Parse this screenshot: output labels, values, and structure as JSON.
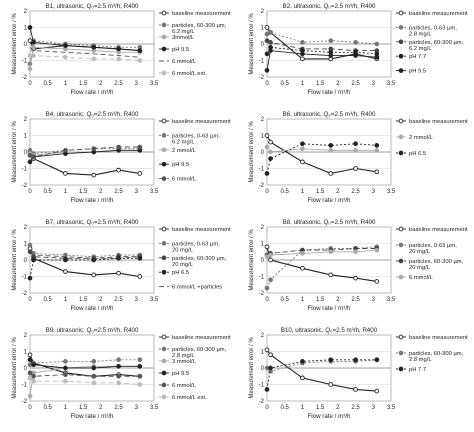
{
  "chart_data": [
    {
      "type": "line",
      "title": "B1, ultrasonic, Q₀=2.5 m³/h, R400",
      "xlabel": "Flow rate / m³/h",
      "ylabel": "Measurement error / %",
      "xlim": [
        0,
        3.5
      ],
      "ylim": [
        -2,
        2
      ],
      "xticks": [
        "0",
        "0.5",
        "1",
        "1.5",
        "2",
        "2.5",
        "3",
        "3.5"
      ],
      "yticks": [
        "2",
        "1",
        "0",
        "-1",
        "-2"
      ],
      "grid": "horizontal",
      "legend_position": "right",
      "series": [
        {
          "name": "baseline measurement",
          "color": "#222222",
          "dash": "",
          "marker": "circle-open",
          "x": [
            0,
            0.1,
            1,
            1.8,
            2.5,
            3.1
          ],
          "y": [
            0.2,
            -0.3,
            -0.1,
            -0.2,
            -0.3,
            -0.4
          ]
        },
        {
          "name": "particles, 60-300 µm, 6.2 mg/L",
          "color": "#777777",
          "dash": "2,2",
          "marker": "circle",
          "x": [
            0,
            0.1,
            1,
            1.8,
            2.5,
            3.1
          ],
          "y": [
            -1.2,
            0.2,
            0.0,
            -0.1,
            -0.2,
            -0.2
          ]
        },
        {
          "name": "3mmol/L",
          "color": "#aaaaaa",
          "dash": "",
          "marker": "circle",
          "x": [
            0,
            0.1,
            1,
            1.8,
            2.5,
            3.1
          ],
          "y": [
            -1.5,
            -0.2,
            -0.3,
            -0.4,
            -0.5,
            -0.5
          ]
        },
        {
          "name": "pH 9.5",
          "color": "#222222",
          "dash": "",
          "marker": "circle",
          "x": [
            0,
            0.1,
            1,
            1.8,
            2.5,
            3.1
          ],
          "y": [
            1.0,
            0.1,
            -0.1,
            -0.2,
            -0.3,
            -0.4
          ]
        },
        {
          "name": "6 mmol/L",
          "color": "#555555",
          "dash": "5,3",
          "marker": "none",
          "x": [
            0,
            0.1,
            1,
            1.8,
            2.5,
            3.1
          ],
          "y": [
            -0.2,
            -0.4,
            -0.5,
            -0.6,
            -0.7,
            -0.8
          ]
        },
        {
          "name": "6 mmol/L ext.",
          "color": "#bbbbbb",
          "dash": "5,3",
          "marker": "circle",
          "x": [
            0,
            0.1,
            1,
            1.8,
            2.5,
            3.1
          ],
          "y": [
            -0.7,
            -0.7,
            -0.8,
            -0.9,
            -0.9,
            -1.0
          ]
        }
      ]
    },
    {
      "type": "line",
      "title": "B2, ultrasonic, Q₀=2.5 m³/h, R400",
      "xlabel": "Flow rate / m³/h",
      "ylabel": "Measurement error / %",
      "xlim": [
        0,
        3.5
      ],
      "ylim": [
        -2,
        2
      ],
      "xticks": [
        "0",
        "0.5",
        "1",
        "1.5",
        "2",
        "2.5",
        "3",
        "3.5"
      ],
      "yticks": [
        "2",
        "1",
        "0",
        "-1",
        "-2"
      ],
      "grid": "horizontal",
      "legend_position": "right",
      "series": [
        {
          "name": "baseline measurement",
          "color": "#222222",
          "dash": "",
          "marker": "circle-open",
          "x": [
            0,
            0.1,
            1,
            1.8,
            2.5,
            3.1
          ],
          "y": [
            1.0,
            0.7,
            -0.9,
            -0.9,
            -0.6,
            -0.9
          ]
        },
        {
          "name": "particles, 0-63 µm, 2.8 mg/L",
          "color": "#777777",
          "dash": "2,2",
          "marker": "circle",
          "x": [
            0,
            0.1,
            1,
            1.8,
            2.5,
            3.1
          ],
          "y": [
            0.6,
            0.7,
            0.1,
            0.2,
            0.1,
            0.0
          ]
        },
        {
          "name": "particles, 60-300 µm, 6.2 mg/L",
          "color": "#444444",
          "dash": "5,3",
          "marker": "circle",
          "x": [
            0,
            0.1,
            1,
            1.8,
            2.5,
            3.1
          ],
          "y": [
            0.2,
            0.1,
            -0.3,
            -0.3,
            -0.4,
            -0.4
          ]
        },
        {
          "name": "pH 7.7",
          "color": "#222222",
          "dash": "2,2",
          "marker": "circle",
          "x": [
            0,
            0.1,
            1,
            1.8,
            2.5,
            3.1
          ],
          "y": [
            -0.6,
            -0.2,
            -0.4,
            -0.5,
            -0.5,
            -0.6
          ]
        },
        {
          "name": "pH 9.5",
          "color": "#222222",
          "dash": "",
          "marker": "circle",
          "x": [
            0,
            0.1,
            1,
            1.8,
            2.5,
            3.1
          ],
          "y": [
            -1.6,
            -0.4,
            -0.6,
            -0.7,
            -0.7,
            -0.8
          ]
        }
      ]
    },
    {
      "type": "line",
      "title": "B4, ultrasonic, Q₀=2.5 m³/h, R400",
      "xlabel": "Flow rate / m³/h",
      "ylabel": "Measurement error / %",
      "xlim": [
        0,
        3.5
      ],
      "ylim": [
        -2,
        2
      ],
      "xticks": [
        "0",
        "0.5",
        "1",
        "1.5",
        "2",
        "2.5",
        "3",
        "3.5"
      ],
      "yticks": [
        "2",
        "1",
        "0",
        "-1",
        "-2"
      ],
      "grid": "horizontal",
      "legend_position": "right",
      "series": [
        {
          "name": "baseline measurement",
          "color": "#222222",
          "dash": "",
          "marker": "circle-open",
          "x": [
            0,
            0.1,
            1,
            1.8,
            2.5,
            3.1
          ],
          "y": [
            0.0,
            -0.4,
            -1.3,
            -1.4,
            -1.1,
            -1.3
          ]
        },
        {
          "name": "particles, 0-63 µm, 6.2 mg/L",
          "color": "#777777",
          "dash": "2,2",
          "marker": "circle",
          "x": [
            0,
            0.1,
            1,
            1.8,
            2.5,
            3.1
          ],
          "y": [
            0.1,
            -0.1,
            0.1,
            0.2,
            0.2,
            0.2
          ]
        },
        {
          "name": "2 mmol/L",
          "color": "#aaaaaa",
          "dash": "",
          "marker": "circle",
          "x": [
            0,
            0.1,
            1,
            1.8,
            2.5,
            3.1
          ],
          "y": [
            -0.1,
            -0.2,
            0.0,
            0.0,
            0.1,
            0.1
          ]
        },
        {
          "name": "pH 9.5",
          "color": "#222222",
          "dash": "",
          "marker": "circle",
          "x": [
            0,
            0.1,
            1,
            1.8,
            2.5,
            3.1
          ],
          "y": [
            -0.6,
            -0.3,
            -0.1,
            0.0,
            0.1,
            0.1
          ]
        },
        {
          "name": "6 mmol/L",
          "color": "#555555",
          "dash": "5,3",
          "marker": "circle",
          "x": [
            0,
            0.1,
            1,
            1.8,
            2.5,
            3.1
          ],
          "y": [
            -0.2,
            -0.3,
            0.1,
            0.2,
            0.3,
            0.3
          ]
        }
      ]
    },
    {
      "type": "line",
      "title": "B6, ultrasonic, Q₀=2.5 m³/h, R400",
      "xlabel": "Flow rate / m³/h",
      "ylabel": "Measurement error / %",
      "xlim": [
        0,
        3.5
      ],
      "ylim": [
        -2,
        2
      ],
      "xticks": [
        "0",
        "0.5",
        "1",
        "1.5",
        "2",
        "2.5",
        "3",
        "3.5"
      ],
      "yticks": [
        "2",
        "1",
        "0",
        "-1",
        "-2"
      ],
      "grid": "horizontal",
      "legend_position": "right",
      "series": [
        {
          "name": "baseline measurement",
          "color": "#222222",
          "dash": "",
          "marker": "circle-open",
          "x": [
            0,
            0.1,
            1,
            1.8,
            2.5,
            3.1
          ],
          "y": [
            1.0,
            0.6,
            -0.6,
            -1.3,
            -1.0,
            -1.2
          ]
        },
        {
          "name": "2 mmol/L",
          "color": "#aaaaaa",
          "dash": "",
          "marker": "circle",
          "x": [
            0,
            0.1,
            1,
            1.8,
            2.5,
            3.1
          ],
          "y": [
            0.3,
            0.0,
            0.2,
            0.1,
            0.1,
            0.1
          ]
        },
        {
          "name": "pH 6.5",
          "color": "#222222",
          "dash": "2,2",
          "marker": "circle",
          "x": [
            0,
            0.1,
            1,
            1.8,
            2.5,
            3.1
          ],
          "y": [
            -1.3,
            -0.4,
            0.5,
            0.4,
            0.5,
            0.4
          ]
        }
      ]
    },
    {
      "type": "line",
      "title": "B7, ultrasonic, Q₀=2.5 m³/h, R400",
      "xlabel": "Flow rate / m³/h",
      "ylabel": "Measurement error / %",
      "xlim": [
        0,
        3.5
      ],
      "ylim": [
        -2,
        2
      ],
      "xticks": [
        "0",
        "0.5",
        "1",
        "1.5",
        "2",
        "2.5",
        "3",
        "3.5"
      ],
      "yticks": [
        "2",
        "1",
        "0",
        "-1",
        "-2"
      ],
      "grid": "horizontal",
      "legend_position": "right",
      "series": [
        {
          "name": "baseline measurement",
          "color": "#222222",
          "dash": "",
          "marker": "circle-open",
          "x": [
            0,
            0.1,
            1,
            1.8,
            2.5,
            3.1
          ],
          "y": [
            0.7,
            0.1,
            -0.7,
            -0.9,
            -0.8,
            -1.0
          ]
        },
        {
          "name": "particles, 0-63 µm, 20 mg/L",
          "color": "#777777",
          "dash": "2,2",
          "marker": "circle",
          "x": [
            0,
            0.1,
            1,
            1.8,
            2.5,
            3.1
          ],
          "y": [
            0.9,
            0.4,
            0.3,
            0.2,
            0.3,
            0.3
          ]
        },
        {
          "name": "particles, 60-300 µm, 20 mg/L",
          "color": "#444444",
          "dash": "5,3",
          "marker": "circle",
          "x": [
            0,
            0.1,
            1,
            1.8,
            2.5,
            3.1
          ],
          "y": [
            0.5,
            0.2,
            0.1,
            0.1,
            0.2,
            0.2
          ]
        },
        {
          "name": "pH 6.5",
          "color": "#222222",
          "dash": "2,2",
          "marker": "circle",
          "x": [
            0,
            0.1,
            1,
            1.8,
            2.5,
            3.1
          ],
          "y": [
            -1.1,
            0.0,
            0.0,
            0.0,
            0.1,
            0.1
          ]
        },
        {
          "name": "6 mmol/L +particles",
          "color": "#555555",
          "dash": "5,3",
          "marker": "none",
          "x": [
            0,
            0.1,
            1,
            1.8,
            2.5,
            3.1
          ],
          "y": [
            0.4,
            0.3,
            0.2,
            0.1,
            0.1,
            0.2
          ]
        }
      ]
    },
    {
      "type": "line",
      "title": "B8, ultrasonic, Q₀=2.5 m³/h, R400",
      "xlabel": "Flow rate / m³/h",
      "ylabel": "Measurement error / %",
      "xlim": [
        0,
        3.5
      ],
      "ylim": [
        -2,
        2
      ],
      "xticks": [
        "0",
        "0.5",
        "1",
        "1.5",
        "2",
        "2.5",
        "3",
        "3.5"
      ],
      "yticks": [
        "2",
        "1",
        "0",
        "-1",
        "-2"
      ],
      "grid": "horizontal",
      "legend_position": "right",
      "series": [
        {
          "name": "baseline measurement",
          "color": "#222222",
          "dash": "",
          "marker": "circle-open",
          "x": [
            0,
            0.1,
            1,
            1.8,
            2.5,
            3.1
          ],
          "y": [
            0.8,
            0.0,
            -0.5,
            -0.9,
            -1.1,
            -1.3
          ]
        },
        {
          "name": "particles, 0-63 µm, 20 mg/L",
          "color": "#777777",
          "dash": "2,2",
          "marker": "circle",
          "x": [
            0,
            0.1,
            1,
            1.8,
            2.5,
            3.1
          ],
          "y": [
            -1.7,
            -1.2,
            0.6,
            0.7,
            0.7,
            0.8
          ]
        },
        {
          "name": "particles, 60-300 µm, 20 mg/L",
          "color": "#444444",
          "dash": "5,3",
          "marker": "circle",
          "x": [
            0,
            0.1,
            1,
            1.8,
            2.5,
            3.1
          ],
          "y": [
            0.3,
            0.4,
            0.6,
            0.6,
            0.7,
            0.7
          ]
        },
        {
          "name": "6 mmol/L",
          "color": "#aaaaaa",
          "dash": "",
          "marker": "circle",
          "x": [
            0,
            0.1,
            1,
            1.8,
            2.5,
            3.1
          ],
          "y": [
            0.2,
            0.3,
            0.4,
            0.5,
            0.5,
            0.6
          ]
        }
      ]
    },
    {
      "type": "line",
      "title": "B9, ultrasonic, Q₀=2.5 m³/h, R400",
      "xlabel": "Flow rate / m³/h",
      "ylabel": "Measurement error / %",
      "xlim": [
        0,
        3.5
      ],
      "ylim": [
        -2,
        2
      ],
      "xticks": [
        "0",
        "0.5",
        "1",
        "1.5",
        "2",
        "2.5",
        "3",
        "3.5"
      ],
      "yticks": [
        "2",
        "1",
        "0",
        "-1",
        "-2"
      ],
      "grid": "horizontal",
      "legend_position": "right",
      "series": [
        {
          "name": "baseline measurement",
          "color": "#222222",
          "dash": "",
          "marker": "circle-open",
          "x": [
            0,
            0.1,
            1,
            1.8,
            2.5,
            3.1
          ],
          "y": [
            0.8,
            0.3,
            -0.3,
            -0.5,
            -0.4,
            -0.5
          ]
        },
        {
          "name": "particles, 60-300 µm, 2.8 mg/L",
          "color": "#777777",
          "dash": "2,2",
          "marker": "circle",
          "x": [
            0,
            0.1,
            1,
            1.8,
            2.5,
            3.1
          ],
          "y": [
            0.2,
            0.3,
            0.4,
            0.4,
            0.5,
            0.5
          ]
        },
        {
          "name": "3 mmol/L",
          "color": "#aaaaaa",
          "dash": "",
          "marker": "circle",
          "x": [
            0,
            0.1,
            1,
            1.8,
            2.5,
            3.1
          ],
          "y": [
            -1.7,
            -0.3,
            0.0,
            0.1,
            0.1,
            0.1
          ]
        },
        {
          "name": "pH 9.5",
          "color": "#222222",
          "dash": "",
          "marker": "circle",
          "x": [
            0,
            0.1,
            1,
            1.8,
            2.5,
            3.1
          ],
          "y": [
            0.5,
            0.2,
            0.0,
            0.0,
            0.1,
            0.1
          ]
        },
        {
          "name": "6 mmol/L",
          "color": "#555555",
          "dash": "5,3",
          "marker": "circle",
          "x": [
            0,
            0.1,
            1,
            1.8,
            2.5,
            3.1
          ],
          "y": [
            -0.3,
            -0.5,
            -0.4,
            -0.5,
            -0.5,
            -0.5
          ]
        },
        {
          "name": "6 mmol/L ext.",
          "color": "#bbbbbb",
          "dash": "5,3",
          "marker": "circle",
          "x": [
            0,
            0.1,
            1,
            1.8,
            2.5,
            3.1
          ],
          "y": [
            -0.6,
            -0.8,
            -0.8,
            -0.9,
            -0.9,
            -1.0
          ]
        }
      ]
    },
    {
      "type": "line",
      "title": "B10, ultrasonic, Q₀=2.5 m³/h, R400",
      "xlabel": "Flow rate / m³/h",
      "ylabel": "Measurement error / %",
      "xlim": [
        0,
        3.5
      ],
      "ylim": [
        -2,
        2
      ],
      "xticks": [
        "0",
        "0.5",
        "1",
        "1.5",
        "2",
        "2.5",
        "3",
        "3.5"
      ],
      "yticks": [
        "2",
        "1",
        "0",
        "-1",
        "-2"
      ],
      "grid": "horizontal",
      "legend_position": "right",
      "series": [
        {
          "name": "baseline measurement",
          "color": "#222222",
          "dash": "",
          "marker": "circle-open",
          "x": [
            0,
            0.1,
            1,
            1.8,
            2.5,
            3.1
          ],
          "y": [
            1.1,
            0.8,
            -0.6,
            -1.0,
            -1.3,
            -1.4
          ]
        },
        {
          "name": "particles, 60-300 µm, 2.8 mg/L",
          "color": "#777777",
          "dash": "2,2",
          "marker": "circle",
          "x": [
            0,
            0.1,
            1,
            1.8,
            2.5,
            3.1
          ],
          "y": [
            0.0,
            -0.2,
            0.3,
            0.4,
            0.4,
            0.5
          ]
        },
        {
          "name": "pH 7.7",
          "color": "#222222",
          "dash": "2,2",
          "marker": "circle",
          "x": [
            0,
            0.1,
            1,
            1.8,
            2.5,
            3.1
          ],
          "y": [
            -1.3,
            0.0,
            0.4,
            0.5,
            0.5,
            0.5
          ]
        }
      ]
    }
  ]
}
